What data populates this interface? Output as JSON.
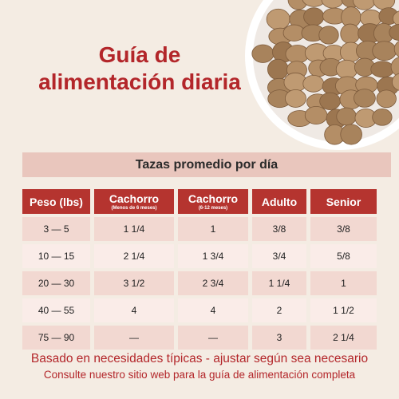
{
  "header": {
    "title_line1": "Guía de",
    "title_line2": "alimentación diaria"
  },
  "banner": "Tazas promedio por día",
  "table": {
    "columns": [
      {
        "label": "Peso (lbs)"
      },
      {
        "label": "Cachorro",
        "sublabel": "(Menos de 6 meses)"
      },
      {
        "label": "Cachorro",
        "sublabel": "(6-12 meses)"
      },
      {
        "label": "Adulto"
      },
      {
        "label": "Senior"
      }
    ],
    "rows": [
      [
        "3 — 5",
        "1 1/4",
        "1",
        "3/8",
        "3/8"
      ],
      [
        "10 — 15",
        "2 1/4",
        "1 3/4",
        "3/4",
        "5/8"
      ],
      [
        "20 — 30",
        "3 1/2",
        "2 3/4",
        "1 1/4",
        "1"
      ],
      [
        "40 — 55",
        "4",
        "4",
        "2",
        "1 1/2"
      ],
      [
        "75 — 90",
        "—",
        "—",
        "3",
        "2 1/4"
      ]
    ]
  },
  "footer": {
    "line1": "Basado en necesidades típicas - ajustar según sea necesario",
    "line2": "Consulte nuestro sitio web para la guía de alimentación completa"
  }
}
